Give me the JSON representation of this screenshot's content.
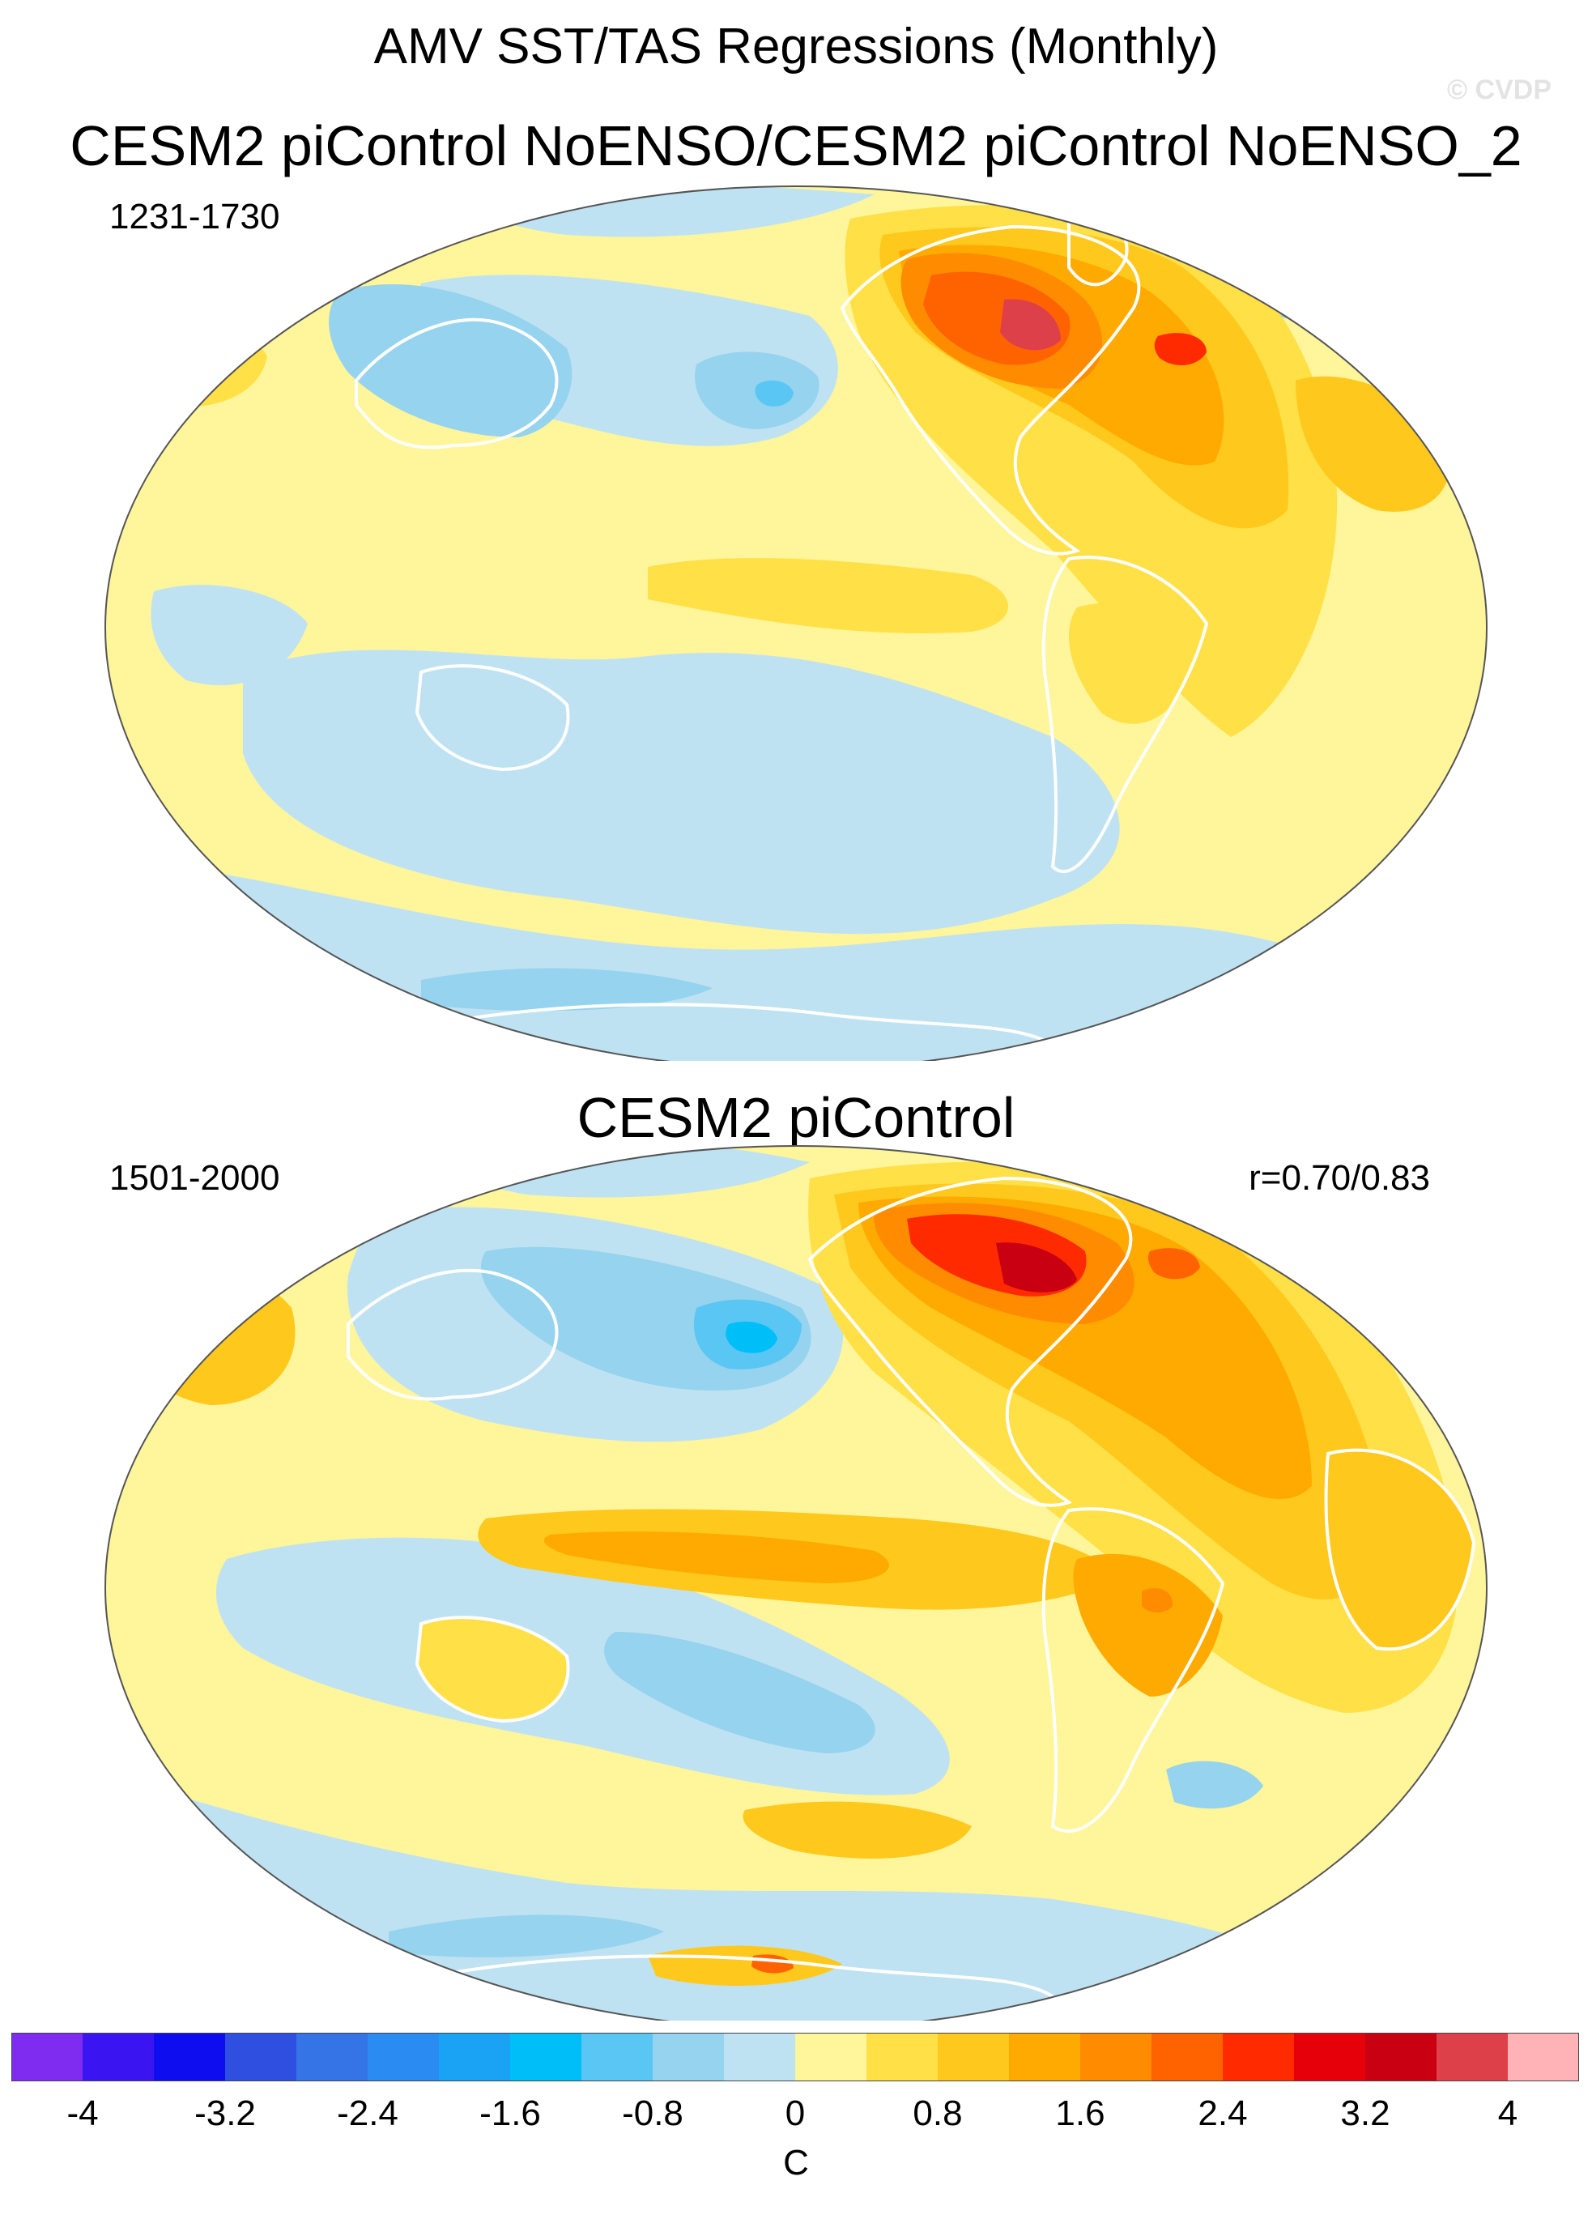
{
  "figure": {
    "title": "AMV SST/TAS Regressions (Monthly)",
    "watermark": "© CVDP"
  },
  "panels": [
    {
      "title": "CESM2 piControl NoENSO/CESM2 piControl NoENSO_2",
      "years": "1231-1730",
      "correlation": ""
    },
    {
      "title": "CESM2 piControl",
      "years": "1501-2000",
      "correlation": "r=0.70/0.83"
    }
  ],
  "colorbar": {
    "unit": "C",
    "tick_labels": [
      "-4",
      "-3.2",
      "-2.4",
      "-1.6",
      "-0.8",
      "0",
      "0.8",
      "1.6",
      "2.4",
      "3.2",
      "4"
    ],
    "levels": [
      -4.4,
      -4,
      -3.6,
      -3.2,
      -2.8,
      -2.4,
      -2,
      -1.6,
      -1.2,
      -0.8,
      -0.4,
      0,
      0.4,
      0.8,
      1.2,
      1.6,
      2,
      2.4,
      2.8,
      3.2,
      3.6,
      4,
      4.4
    ],
    "colors": [
      "#7f2bf0",
      "#3a15f2",
      "#0d0df0",
      "#2f4fe0",
      "#3574e6",
      "#2a8bf2",
      "#1aa3f5",
      "#00bff8",
      "#5ac6f3",
      "#96d3ee",
      "#bfe2f3",
      "#fff59a",
      "#ffe046",
      "#ffc81c",
      "#ffaa00",
      "#ff8c00",
      "#ff6300",
      "#ff2a00",
      "#e5000a",
      "#c80012",
      "#dd4048",
      "#ffb3b6"
    ]
  }
}
